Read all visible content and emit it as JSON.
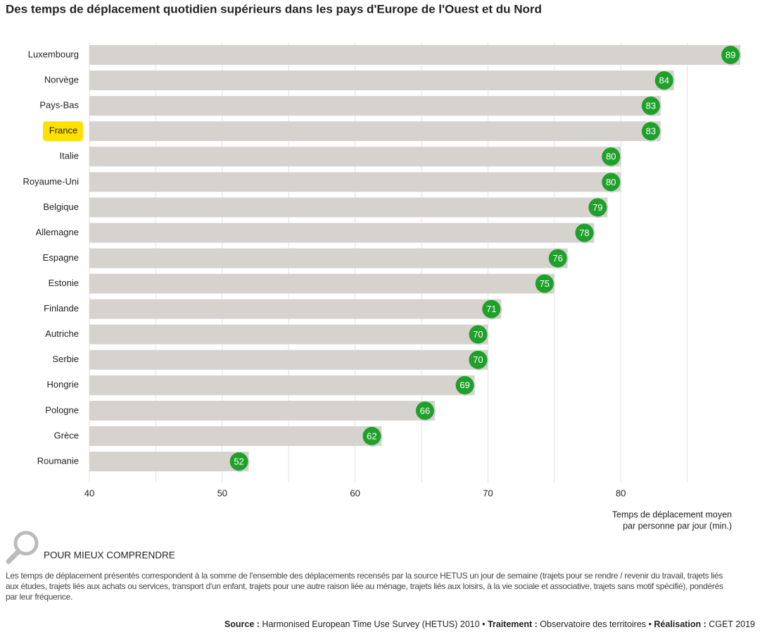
{
  "chart_data": {
    "type": "bar",
    "orientation": "horizontal",
    "title": "Des temps de déplacement quotidien supérieurs dans les pays d'Europe de l'Ouest et du Nord",
    "categories": [
      "Luxembourg",
      "Norvège",
      "Pays-Bas",
      "France",
      "Italie",
      "Royaume-Uni",
      "Belgique",
      "Allemagne",
      "Espagne",
      "Estonie",
      "Finlande",
      "Autriche",
      "Serbie",
      "Hongrie",
      "Pologne",
      "Grèce",
      "Roumanie"
    ],
    "values": [
      89,
      84,
      83,
      83,
      80,
      80,
      79,
      78,
      76,
      75,
      71,
      70,
      70,
      69,
      66,
      62,
      52
    ],
    "color": "#d6d3ce",
    "marker_color": "#1fa02a",
    "highlight_category": "France",
    "highlight_color": "#ffe100",
    "xlim": [
      40,
      90
    ],
    "xticks": [
      40,
      50,
      60,
      70,
      80
    ],
    "xminorgrid": [
      45,
      55,
      65,
      75,
      85
    ],
    "grid": true,
    "xlabel": [
      "Temps de déplacement moyen",
      "par personne par jour (min.)"
    ]
  },
  "notes": {
    "heading": "POUR MIEUX COMPRENDRE",
    "text": "Les temps de déplacement présentés correspondent à la somme de l'ensemble des déplacements recensés par la source HETUS un jour de semaine (trajets pour se rendre / revenir du travail, trajets liés aux études, trajets liés aux achats ou services, transport d'un enfant, trajets pour une autre raison liée au ménage, trajets liés aux loisirs, à la vie sociale et associative, trajets sans motif spécifié), pondérés par leur fréquence."
  },
  "footer": {
    "source_label": "Source :",
    "source": "Harmonised European Time Use Survey (HETUS) 2010",
    "sep1": "•",
    "treatment_label": "Traitement :",
    "treatment": "Observatoire des territoires",
    "sep2": "•",
    "production_label": "Réalisation :",
    "production": "CGET 2019"
  }
}
